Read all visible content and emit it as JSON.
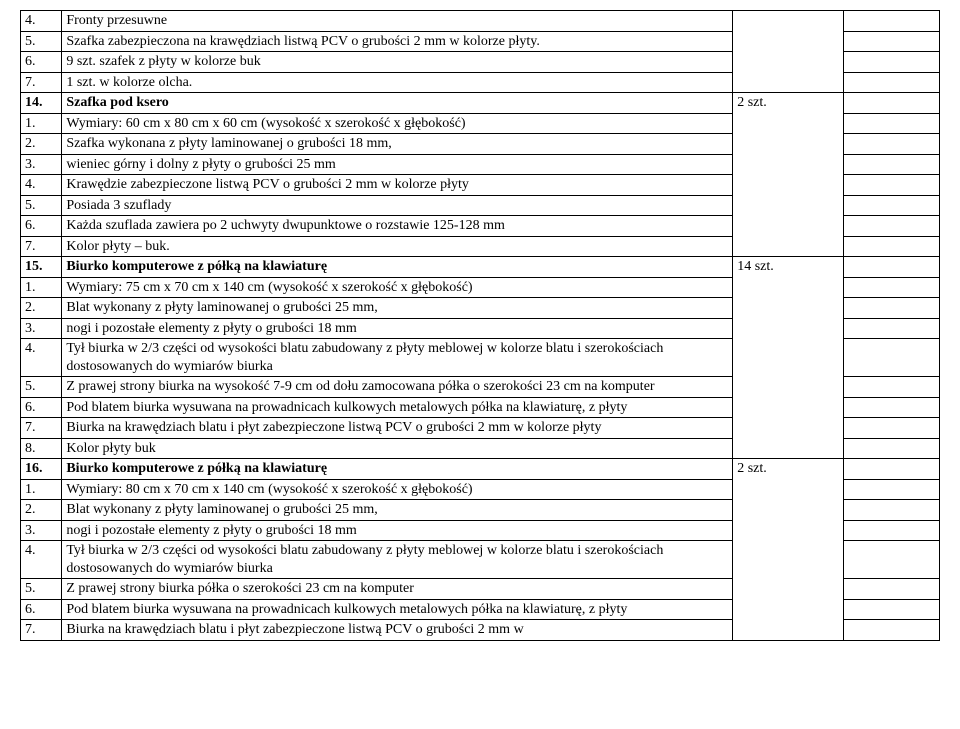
{
  "rows": [
    {
      "num": "4.",
      "text": "Fronty przesuwne",
      "qty": "",
      "qtyRowspan": 4,
      "blankRowspan": 1
    },
    {
      "num": "5.",
      "text": "Szafka zabezpieczona na krawędziach listwą PCV o grubości 2 mm w kolorze płyty.",
      "blankRowspan": 1
    },
    {
      "num": "6.",
      "text": "9 szt. szafek z płyty w kolorze buk",
      "blankRowspan": 1
    },
    {
      "num": "7.",
      "text": "1 szt. w kolorze olcha.",
      "blankRowspan": 1
    },
    {
      "num": "14.",
      "text": "Szafka pod ksero",
      "qty": "2 szt.",
      "qtyRowspan": 8,
      "blankRowspan": 1,
      "bold": true
    },
    {
      "num": "1.",
      "text": "Wymiary:   60 cm x 80 cm x 60 cm (wysokość x szerokość x głębokość)",
      "blankRowspan": 1
    },
    {
      "num": "2.",
      "text": "Szafka wykonana z płyty laminowanej o grubości 18 mm,",
      "blankRowspan": 1
    },
    {
      "num": "3.",
      "text": "wieniec górny i dolny z płyty o grubości 25 mm",
      "blankRowspan": 1
    },
    {
      "num": "4.",
      "text": "Krawędzie zabezpieczone  listwą PCV o grubości 2 mm w kolorze płyty",
      "blankRowspan": 1
    },
    {
      "num": "5.",
      "text": "Posiada 3 szuflady",
      "blankRowspan": 1
    },
    {
      "num": "6.",
      "text": "Każda szuflada zawiera po 2 uchwyty dwupunktowe o rozstawie 125-128 mm",
      "blankRowspan": 1
    },
    {
      "num": "7.",
      "text": "Kolor płyty – buk.",
      "blankRowspan": 1
    },
    {
      "num": "15.",
      "text": "Biurko komputerowe z półką na klawiaturę",
      "qty": "14 szt.",
      "qtyRowspan": 9,
      "blankRowspan": 1,
      "bold": true
    },
    {
      "num": "1.",
      "text": "Wymiary:   75 cm x 70 cm x 140 cm (wysokość x szerokość x głębokość)",
      "blankRowspan": 1
    },
    {
      "num": "2.",
      "text": "Blat wykonany z płyty laminowanej o grubości 25 mm,",
      "blankRowspan": 1
    },
    {
      "num": "3.",
      "text": "nogi i pozostałe elementy z płyty  o grubości 18 mm",
      "blankRowspan": 1
    },
    {
      "num": "4.",
      "text": "Tył biurka w 2/3 części od wysokości blatu zabudowany z płyty meblowej w kolorze blatu i szerokościach dostosowanych do wymiarów biurka",
      "blankRowspan": 1
    },
    {
      "num": "5.",
      "text": "Z prawej strony biurka na wysokość 7-9 cm od dołu zamocowana półka o szerokości 23 cm na komputer",
      "blankRowspan": 1
    },
    {
      "num": "6.",
      "text": "Pod blatem biurka wysuwana na prowadnicach kulkowych metalowych półka na klawiaturę, z płyty",
      "blankRowspan": 1
    },
    {
      "num": "7.",
      "text": "Biurka na krawędziach blatu i płyt zabezpieczone listwą PCV o grubości 2 mm w kolorze płyty",
      "blankRowspan": 1
    },
    {
      "num": "8.",
      "text": "Kolor płyty  buk",
      "blankRowspan": 1
    },
    {
      "num": "16.",
      "text": "Biurko komputerowe z półką na klawiaturę",
      "qty": "2 szt.",
      "qtyRowspan": 8,
      "blankRowspan": 1,
      "bold": true
    },
    {
      "num": "1.",
      "text": "Wymiary:   80 cm x 70 cm x 140 cm (wysokość x szerokość x głębokość)",
      "blankRowspan": 1
    },
    {
      "num": "2.",
      "text": "Blat wykonany z płyty laminowanej o grubości 25 mm,",
      "blankRowspan": 1
    },
    {
      "num": "3.",
      "text": "nogi i pozostałe elementy z płyty  o grubości 18 mm",
      "blankRowspan": 1
    },
    {
      "num": "4.",
      "text": "Tył biurka w 2/3 części od wysokości blatu zabudowany z płyty meblowej w kolorze blatu i szerokościach dostosowanych do wymiarów biurka",
      "blankRowspan": 1
    },
    {
      "num": "5.",
      "text": "Z prawej strony biurka półka o szerokości 23 cm na komputer",
      "blankRowspan": 1
    },
    {
      "num": "6.",
      "text": "Pod blatem biurka wysuwana na prowadnicach kulkowych metalowych półka na klawiaturę, z płyty",
      "blankRowspan": 1
    },
    {
      "num": "7.",
      "text": "Biurka na krawędziach blatu i płyt zabezpieczone listwą PCV o grubości 2 mm w",
      "blankRowspan": 1
    }
  ]
}
